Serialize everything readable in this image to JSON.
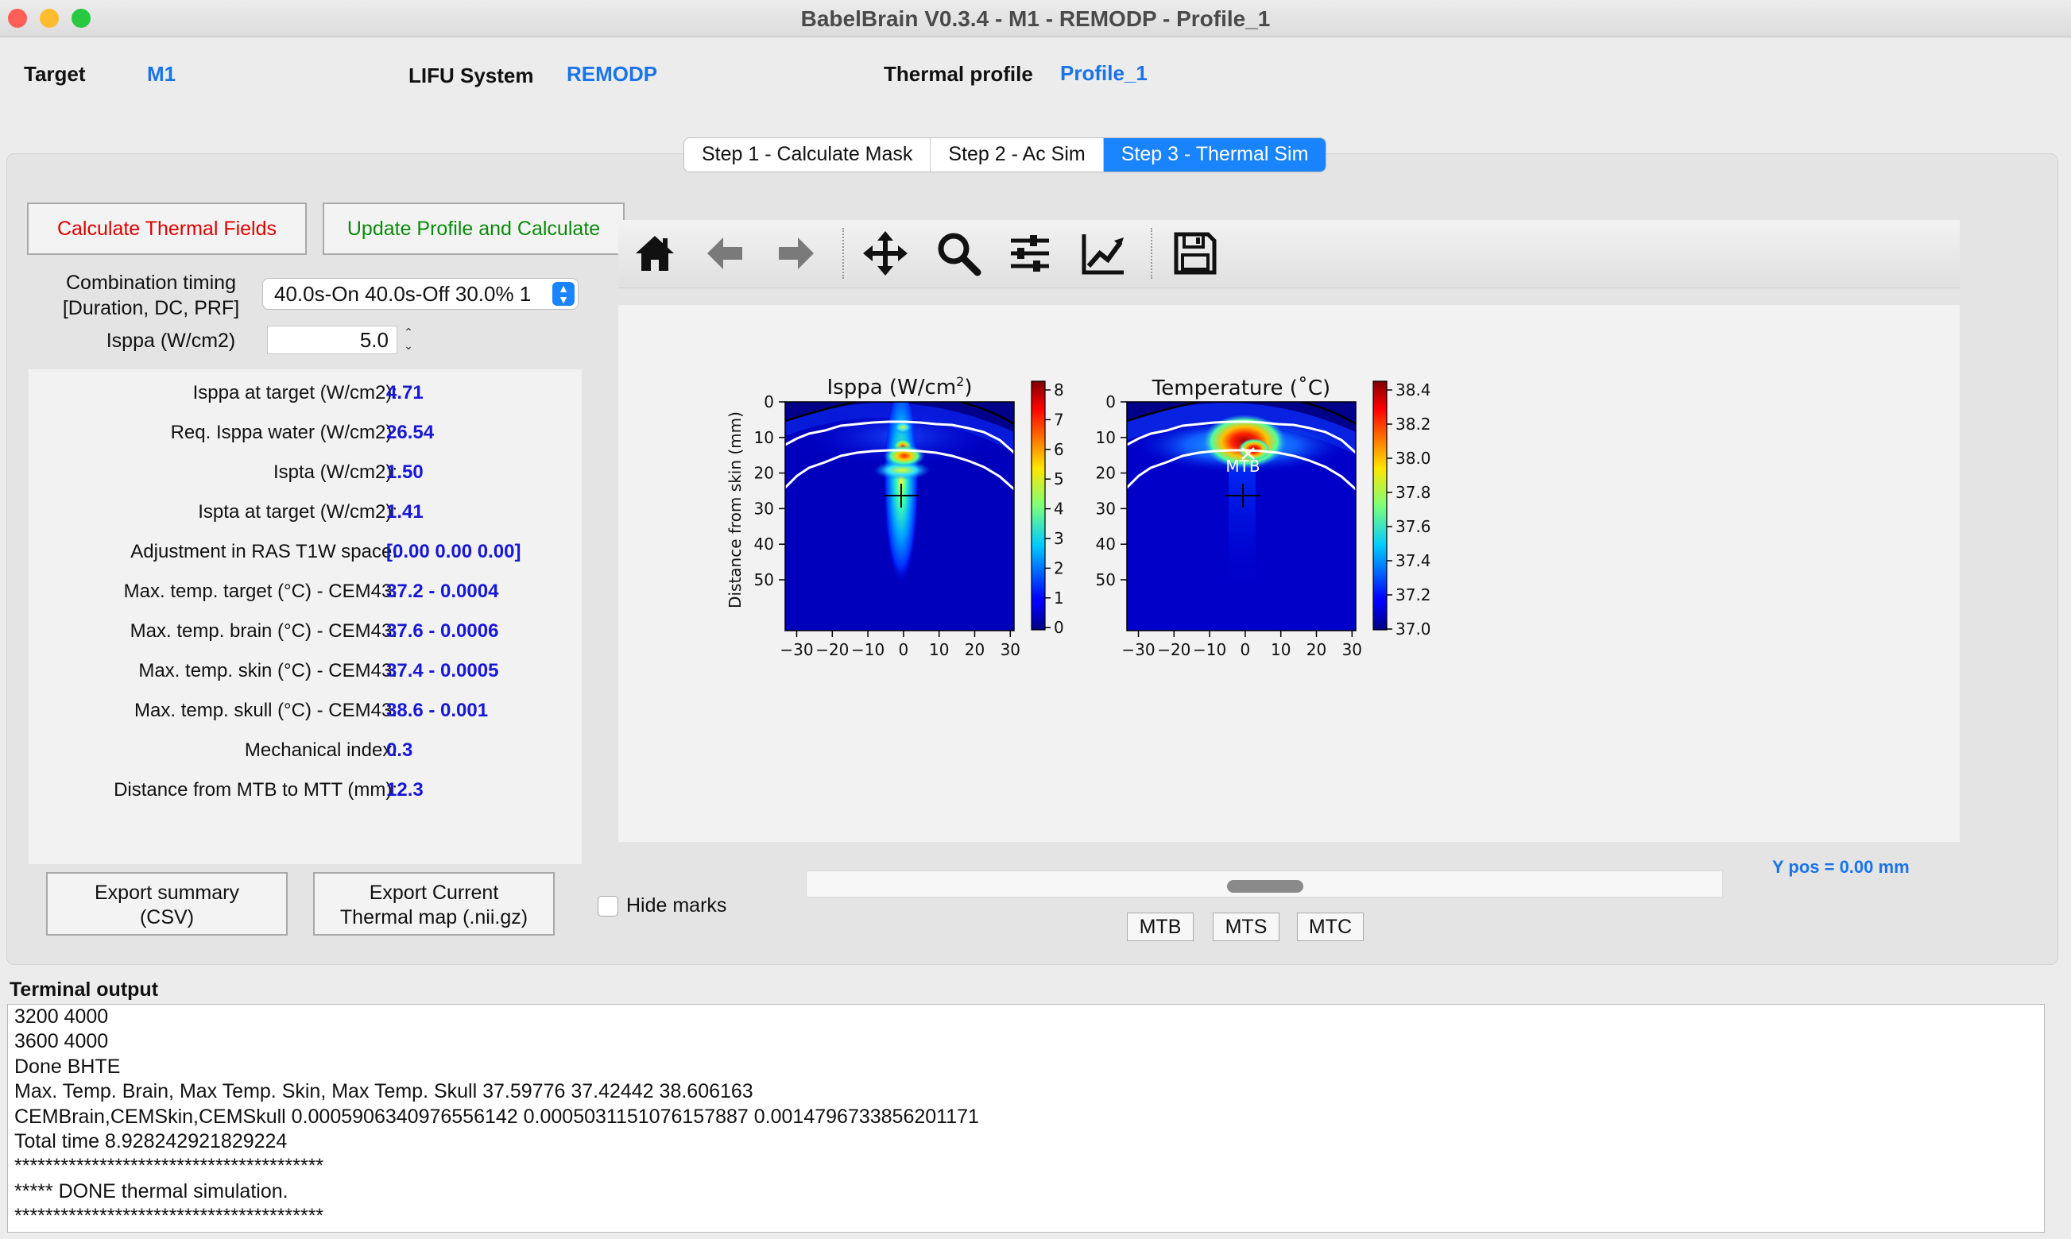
{
  "window": {
    "title": "BabelBrain V0.3.4 - M1 - REMODP - Profile_1",
    "traffic_colors": [
      "#ff5f57",
      "#febc2e",
      "#28c840"
    ]
  },
  "header": {
    "target_label": "Target",
    "target_value": "M1",
    "system_label": "LIFU System",
    "system_value": "REMODP",
    "profile_label": "Thermal profile",
    "profile_value": "Profile_1"
  },
  "tabs": [
    {
      "label": "Step 1 - Calculate Mask",
      "active": false
    },
    {
      "label": "Step 2 - Ac Sim",
      "active": false
    },
    {
      "label": "Step 3 - Thermal Sim",
      "active": true
    }
  ],
  "controls": {
    "calc_button": "Calculate Thermal Fields",
    "update_button": "Update Profile and Calculate",
    "timing_label_1": "Combination timing",
    "timing_label_2": "[Duration, DC, PRF]",
    "timing_value": "40.0s-On 40.0s-Off 30.0% 1",
    "isppa_label": "Isppa (W/cm2)",
    "isppa_value": "5.0",
    "export_summary_1": "Export summary",
    "export_summary_2": "(CSV)",
    "export_map_1": "Export Current",
    "export_map_2": "Thermal map (.nii.gz)",
    "hide_marks": "Hide marks",
    "mtb": "MTB",
    "mts": "MTS",
    "mtc": "MTC",
    "ypos": "Y pos = 0.00 mm"
  },
  "results": [
    {
      "label": "Isppa at target (W/cm2):",
      "value": "4.71"
    },
    {
      "label": "Req. Isppa water (W/cm2):",
      "value": "26.54"
    },
    {
      "label": "Ispta (W/cm2):",
      "value": "1.50"
    },
    {
      "label": "Ispta at target (W/cm2):",
      "value": "1.41"
    },
    {
      "label": "Adjustment in RAS T1W space:",
      "value": "[0.00 0.00 0.00]"
    },
    {
      "label": "Max. temp. target (°C) - CEM43:",
      "value": "37.2 - 0.0004"
    },
    {
      "label": "Max. temp. brain (°C) - CEM43:",
      "value": "37.6 - 0.0006"
    },
    {
      "label": "Max. temp. skin (°C) - CEM43:",
      "value": "37.4 - 0.0005"
    },
    {
      "label": "Max. temp. skull (°C) - CEM43:",
      "value": "38.6 - 0.001"
    },
    {
      "label": "Mechanical index:",
      "value": "0.3"
    },
    {
      "label": "Distance from MTB to MTT (mm):",
      "value": "12.3"
    }
  ],
  "toolbar": [
    "home-icon",
    "back-arrow-icon",
    "forward-arrow-icon",
    "pan-icon",
    "zoom-icon",
    "configure-subplots-icon",
    "edit-axis-icon",
    "save-icon"
  ],
  "plots": {
    "ylabel": "Distance from skin (mm)",
    "x_ticks": [
      "−30",
      "−20",
      "−10",
      "0",
      "10",
      "20",
      "30"
    ],
    "y_ticks": [
      "0",
      "10",
      "20",
      "30",
      "40",
      "50"
    ],
    "left": {
      "title_main": "Isppa (W/cm",
      "title_sup": "2",
      "title_end": ")",
      "colorbar_ticks": [
        "8",
        "7",
        "6",
        "5",
        "4",
        "3",
        "2",
        "1",
        "0"
      ]
    },
    "right": {
      "title": "Temperature (˚C)",
      "mtb_label": "MTB",
      "colorbar_ticks": [
        "38.4",
        "38.2",
        "38.0",
        "37.8",
        "37.6",
        "37.4",
        "37.2",
        "37.0"
      ]
    }
  },
  "terminal": {
    "label": "Terminal output",
    "lines": [
      "3200 4000",
      "3600 4000",
      "Done BHTE",
      "Max. Temp. Brain, Max Temp. Skin, Max Temp. Skull 37.59776 37.42442 38.606163",
      "CEMBrain,CEMSkin,CEMSkull 0.0005906340976556142 0.0005031151076157887 0.0014796733856201171",
      "Total time 8.928242921829224",
      "****************************************",
      "***** DONE thermal simulation.",
      "****************************************"
    ]
  }
}
